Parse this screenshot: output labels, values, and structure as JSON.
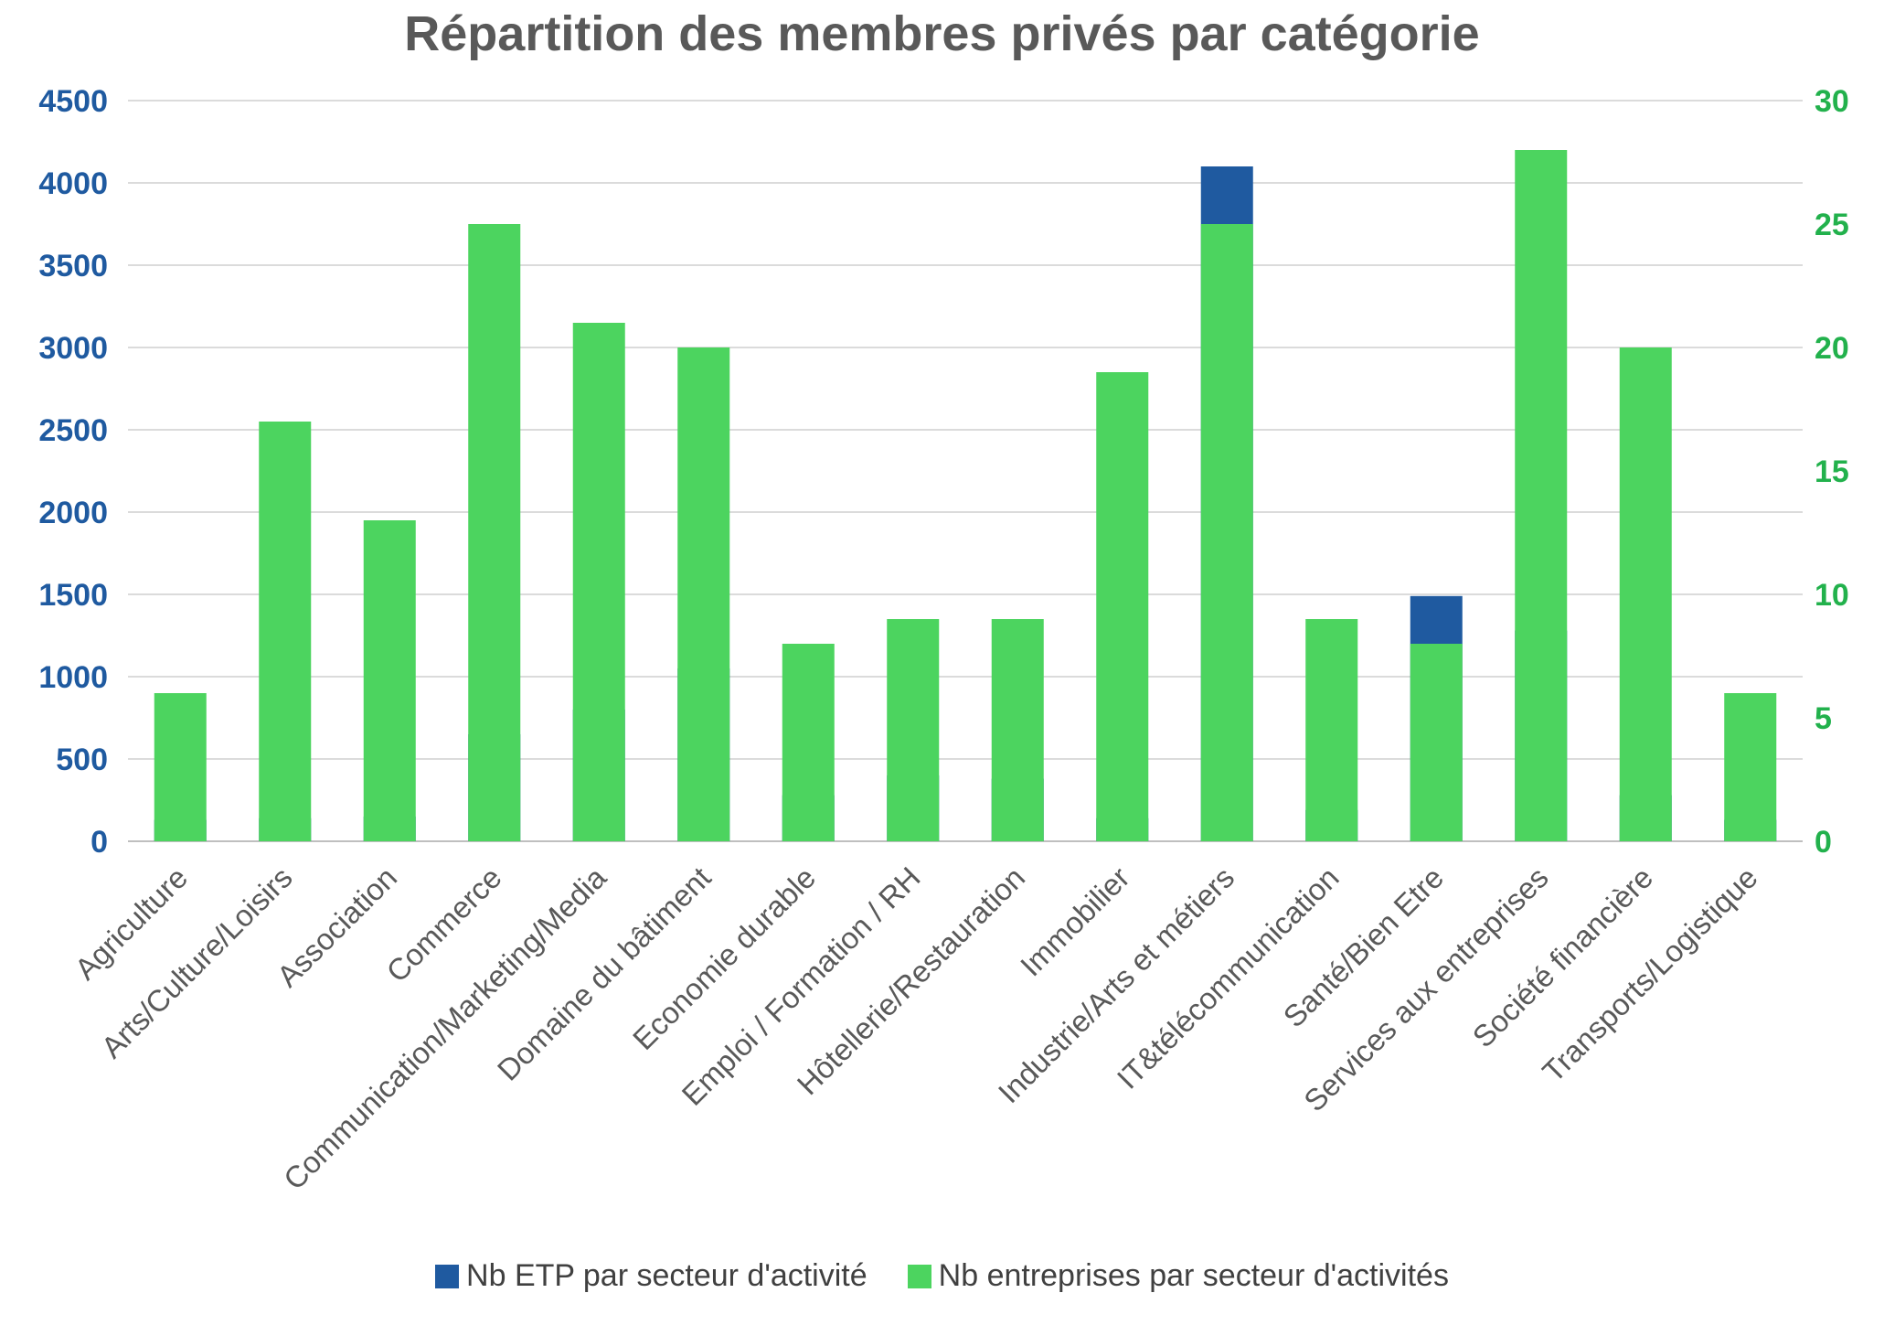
{
  "chart_data": {
    "type": "bar",
    "title": "Répartition des membres privés par catégorie",
    "categories": [
      "Agriculture",
      "Arts/Culture/Loisirs",
      "Association",
      "Commerce",
      "Communication/Marketing/Media",
      "Domaine du bâtiment",
      "Economie durable",
      "Emploi / Formation / RH",
      "Hôtellerie/Restauration",
      "Immobilier",
      "Industrie/Arts et métiers",
      "IT&télécommunication",
      "Santé/Bien Etre",
      "Services aux entreprises",
      "Société financière",
      "Transports/Logistique"
    ],
    "series": [
      {
        "name": "Nb ETP par secteur d'activité",
        "axis": "left",
        "color": "#1f5aa0",
        "values": [
          130,
          140,
          150,
          650,
          800,
          1050,
          280,
          400,
          380,
          140,
          4100,
          190,
          1490,
          1280,
          280,
          130
        ]
      },
      {
        "name": "Nb entreprises par secteur d'activités",
        "axis": "right",
        "color": "#4cd45f",
        "values": [
          6,
          17,
          13,
          25,
          21,
          20,
          8,
          9,
          9,
          19,
          25,
          9,
          8,
          28,
          20,
          6
        ]
      }
    ],
    "y_left": {
      "min": 0,
      "max": 4500,
      "ticks": [
        "0",
        "500",
        "1000",
        "1500",
        "2000",
        "2500",
        "3000",
        "3500",
        "4000",
        "4500"
      ],
      "color": "#1f5aa0"
    },
    "y_right": {
      "min": 0,
      "max": 30,
      "ticks": [
        "0",
        "5",
        "10",
        "15",
        "20",
        "25",
        "30"
      ],
      "color": "#22b14c"
    },
    "grid": true,
    "legend_position": "bottom"
  }
}
